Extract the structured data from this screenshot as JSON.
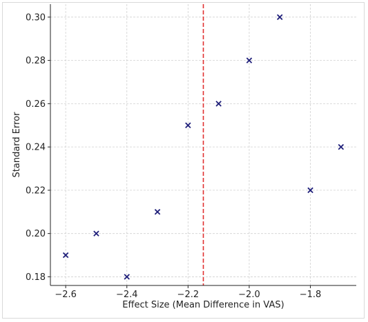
{
  "chart_data": {
    "type": "scatter",
    "title": "",
    "xlabel": "Effect Size (Mean Difference in VAS)",
    "ylabel": "Standard Error",
    "xlim": [
      -2.65,
      -1.65
    ],
    "ylim": [
      0.306,
      0.176
    ],
    "y_inverted": true,
    "grid": true,
    "marker": "x",
    "marker_color": "#1f1f7a",
    "reference_line": {
      "x": -2.15,
      "color": "#e03030",
      "style": "dashed"
    },
    "x_ticks": [
      "−2.6",
      "−2.4",
      "−2.2",
      "−2.0",
      "−1.8"
    ],
    "x_tick_values": [
      -2.6,
      -2.4,
      -2.2,
      -2.0,
      -1.8
    ],
    "y_ticks": [
      "0.18",
      "0.20",
      "0.22",
      "0.24",
      "0.26",
      "0.28",
      "0.30"
    ],
    "y_tick_values": [
      0.18,
      0.2,
      0.22,
      0.24,
      0.26,
      0.28,
      0.3
    ],
    "points": [
      {
        "x": -2.6,
        "y": 0.19
      },
      {
        "x": -2.5,
        "y": 0.2
      },
      {
        "x": -2.4,
        "y": 0.18
      },
      {
        "x": -2.3,
        "y": 0.21
      },
      {
        "x": -2.2,
        "y": 0.25
      },
      {
        "x": -2.1,
        "y": 0.26
      },
      {
        "x": -2.0,
        "y": 0.28
      },
      {
        "x": -1.9,
        "y": 0.3
      },
      {
        "x": -1.8,
        "y": 0.22
      },
      {
        "x": -1.7,
        "y": 0.24
      }
    ]
  }
}
